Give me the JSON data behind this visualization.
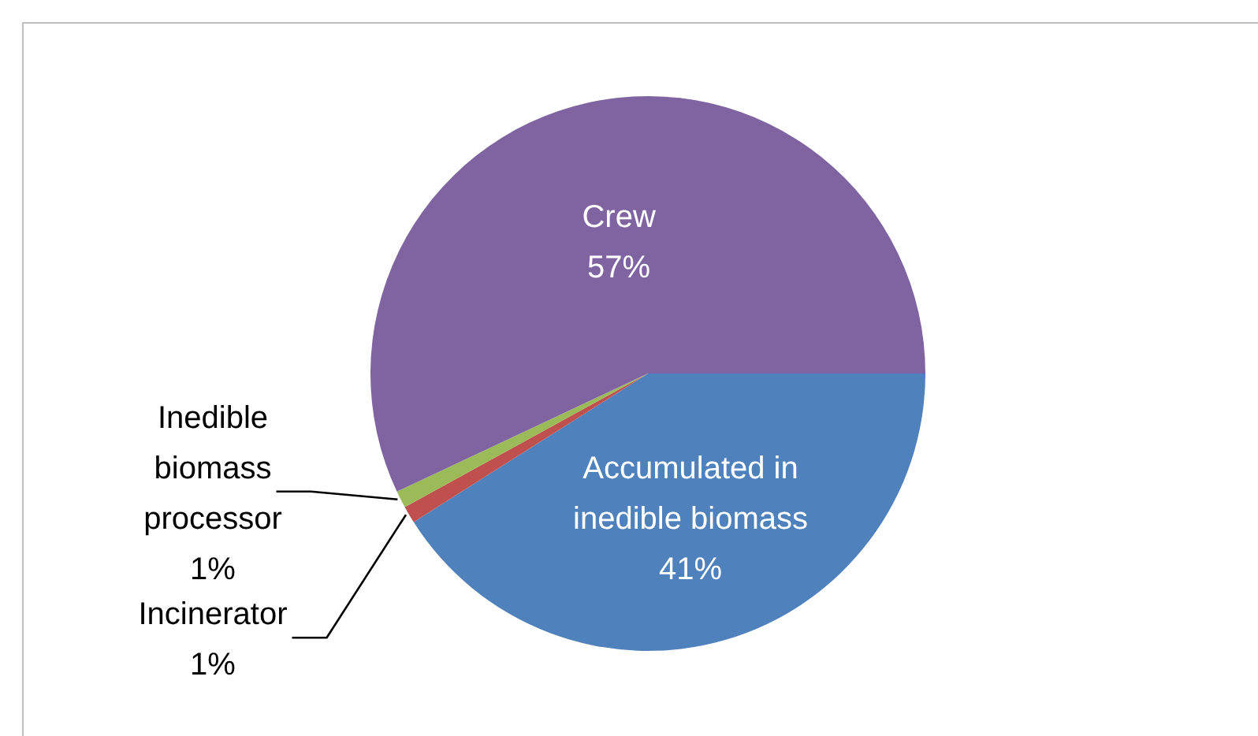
{
  "chart_data": {
    "type": "pie",
    "categories": [
      "Accumulated in inedible biomass",
      "Incinerator",
      "Inedible biomass processor",
      "Crew"
    ],
    "values": [
      41,
      1,
      1,
      57
    ],
    "colors": [
      "#4f81bd",
      "#c0504d",
      "#9bbb59",
      "#8064a2"
    ],
    "value_labels": [
      "41%",
      "1%",
      "1%",
      "57%"
    ],
    "legend": false
  }
}
